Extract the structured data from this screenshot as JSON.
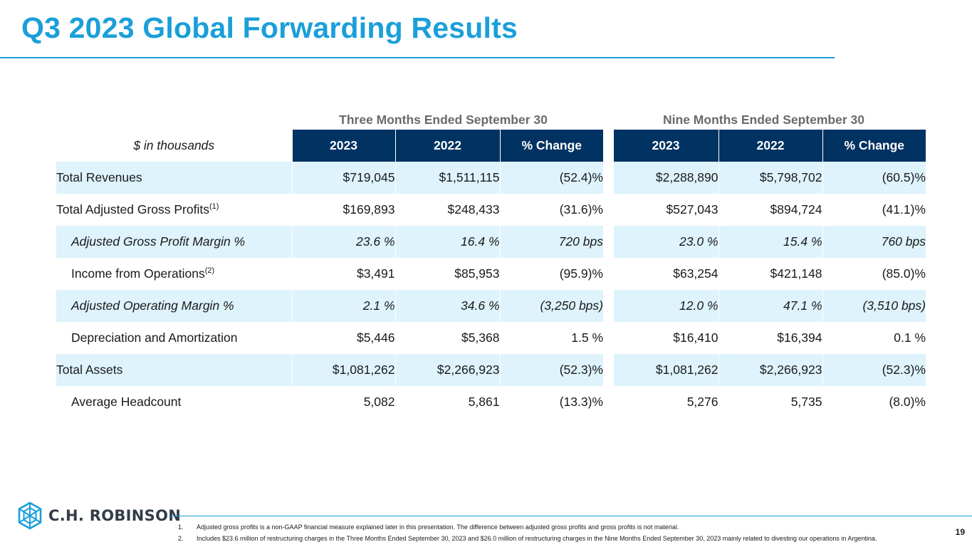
{
  "title": "Q3 2023 Global Forwarding Results",
  "group_headers": {
    "three_months": "Three Months Ended September 30",
    "nine_months": "Nine Months Ended September 30"
  },
  "table": {
    "label_header": "$ in thousands",
    "columns": [
      "2023",
      "2022",
      "% Change",
      "2023",
      "2022",
      "% Change"
    ],
    "rows": [
      {
        "label": "Total Revenues",
        "sup": "",
        "values": [
          "$719,045",
          "$1,511,115",
          "(52.4)%",
          "$2,288,890",
          "$5,798,702",
          "(60.5)%"
        ]
      },
      {
        "label": "Total Adjusted Gross Profits",
        "sup": "(1)",
        "values": [
          "$169,893",
          "$248,433",
          "(31.6)%",
          "$527,043",
          "$894,724",
          "(41.1)%"
        ]
      },
      {
        "label": "Adjusted Gross Profit Margin %",
        "sup": "",
        "values": [
          "23.6 %",
          "16.4 %",
          "720 bps",
          "23.0 %",
          "15.4 %",
          "760 bps"
        ]
      },
      {
        "label": "Income from Operations",
        "sup": "(2)",
        "values": [
          "$3,491",
          "$85,953",
          "(95.9)%",
          "$63,254",
          "$421,148",
          "(85.0)%"
        ]
      },
      {
        "label": "Adjusted Operating Margin %",
        "sup": "",
        "values": [
          "2.1 %",
          "34.6 %",
          "(3,250 bps)",
          "12.0 %",
          "47.1 %",
          "(3,510 bps)"
        ]
      },
      {
        "label": "Depreciation and Amortization",
        "sup": "",
        "values": [
          "$5,446",
          "$5,368",
          "1.5 %",
          "$16,410",
          "$16,394",
          "0.1 %"
        ]
      },
      {
        "label": "Total Assets",
        "sup": "",
        "values": [
          "$1,081,262",
          "$2,266,923",
          "(52.3)%",
          "$1,081,262",
          "$2,266,923",
          "(52.3)%"
        ]
      },
      {
        "label": "Average Headcount",
        "sup": "",
        "values": [
          "5,082",
          "5,861",
          "(13.3)%",
          "5,276",
          "5,735",
          "(8.0)%"
        ]
      }
    ]
  },
  "logo": {
    "text": "C.H. ROBINSON",
    "icon": "cube-logo-icon"
  },
  "footnotes": [
    {
      "num": "1.",
      "text": "Adjusted gross profits is a non-GAAP financial measure explained later in this presentation. The difference between adjusted gross profits and gross profits is not material."
    },
    {
      "num": "2.",
      "text": "Includes $23.6 million of restructuring charges in the Three Months Ended September 30, 2023 and $26.0 million of restructuring charges in the Nine Months Ended September 30, 2023 mainly related to divesting our operations in Argentina."
    }
  ],
  "page_number": "19",
  "colors": {
    "accent": "#1a9fd9",
    "header_bg": "#003262",
    "row_shade": "#def3fb"
  }
}
